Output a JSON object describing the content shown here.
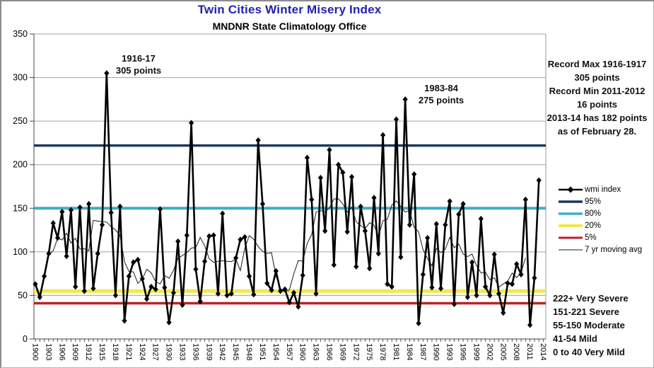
{
  "header": {
    "title": "Twin Cities Winter Misery Index",
    "title_color": "#2121B2",
    "subtitle": "MNDNR State Climatology Office"
  },
  "peak_annotations": [
    {
      "lines": [
        "1916-17",
        "305 points"
      ]
    },
    {
      "lines": [
        "1983-84",
        "275  points"
      ]
    }
  ],
  "info_box": {
    "lines": [
      "Record Max 1916-1917",
      "305  points",
      "Record Min 2011-2012",
      "16  points",
      "2013-14  has 182 points",
      "as of February 28."
    ]
  },
  "severity_box": {
    "lines": [
      "222+  Very Severe",
      "151-221  Severe",
      "55-150  Moderate",
      "41-54  Mild",
      "0 to 40 Very Mild"
    ]
  },
  "legend": [
    {
      "label": "wmi index",
      "color": "#000000",
      "style": "marker",
      "width": 2.5
    },
    {
      "label": "95%",
      "color": "#1B3A5E",
      "style": "line",
      "width": 3.5
    },
    {
      "label": "80%",
      "color": "#3FAECB",
      "style": "line",
      "width": 3.5
    },
    {
      "label": "20%",
      "color": "#F1E94A",
      "style": "line",
      "width": 4
    },
    {
      "label": "5%",
      "color": "#BE2126",
      "style": "line",
      "width": 3
    },
    {
      "label": "7 yr moving avg",
      "color": "#1a1a1a",
      "style": "thin",
      "width": 1
    }
  ],
  "chart_data": {
    "type": "line",
    "title": "Twin Cities Winter Misery Index",
    "subtitle": "MNDNR State Climatology Office",
    "xlabel": "",
    "ylabel": "",
    "ylim": [
      0,
      350
    ],
    "y_ticks": [
      0,
      50,
      100,
      150,
      200,
      250,
      300,
      350
    ],
    "x_range": [
      1900,
      2014
    ],
    "x_tick_years": [
      1900,
      1903,
      1906,
      1909,
      1912,
      1915,
      1918,
      1921,
      1924,
      1927,
      1930,
      1933,
      1936,
      1939,
      1942,
      1945,
      1948,
      1951,
      1954,
      1957,
      1960,
      1963,
      1966,
      1969,
      1972,
      1975,
      1978,
      1981,
      1984,
      1987,
      1990,
      1993,
      1996,
      1999,
      2002,
      2005,
      2008,
      2011,
      2014
    ],
    "grid": true,
    "legend_position": "right",
    "series": [
      {
        "name": "wmi index",
        "type": "line+marker",
        "color": "#000000",
        "marker": "diamond",
        "x_start_year": 1900,
        "values": [
          63,
          48,
          72,
          98,
          133,
          116,
          146,
          95,
          148,
          60,
          151,
          55,
          155,
          58,
          98,
          131,
          305,
          145,
          50,
          152,
          21,
          72,
          88,
          91,
          69,
          46,
          60,
          57,
          149,
          59,
          19,
          53,
          112,
          39,
          119,
          248,
          80,
          43,
          89,
          118,
          119,
          52,
          144,
          50,
          52,
          93,
          114,
          117,
          72,
          51,
          228,
          155,
          64,
          56,
          78,
          55,
          57,
          42,
          53,
          37,
          73,
          208,
          160,
          52,
          185,
          124,
          217,
          85,
          200,
          191,
          123,
          186,
          83,
          152,
          124,
          81,
          162,
          98,
          234,
          63,
          60,
          252,
          94,
          275,
          131,
          189,
          18,
          74,
          116,
          59,
          132,
          58,
          131,
          158,
          40,
          143,
          155,
          48,
          88,
          50,
          138,
          60,
          50,
          97,
          52,
          30,
          64,
          63,
          86,
          74,
          160,
          16,
          70,
          182
        ]
      },
      {
        "name": "95%",
        "type": "hline",
        "value": 222,
        "color": "#1B3A5E",
        "width": 3.5
      },
      {
        "name": "80%",
        "type": "hline",
        "value": 150,
        "color": "#3FAECB",
        "width": 4
      },
      {
        "name": "20%",
        "type": "hline",
        "value": 55,
        "color": "#F1E94A",
        "width": 5
      },
      {
        "name": "5%",
        "type": "hline",
        "value": 41,
        "color": "#BE2126",
        "width": 3.5
      },
      {
        "name": "7 yr moving avg",
        "type": "moving_average",
        "window": 7,
        "color": "#1a1a1a",
        "width": 1
      }
    ]
  }
}
